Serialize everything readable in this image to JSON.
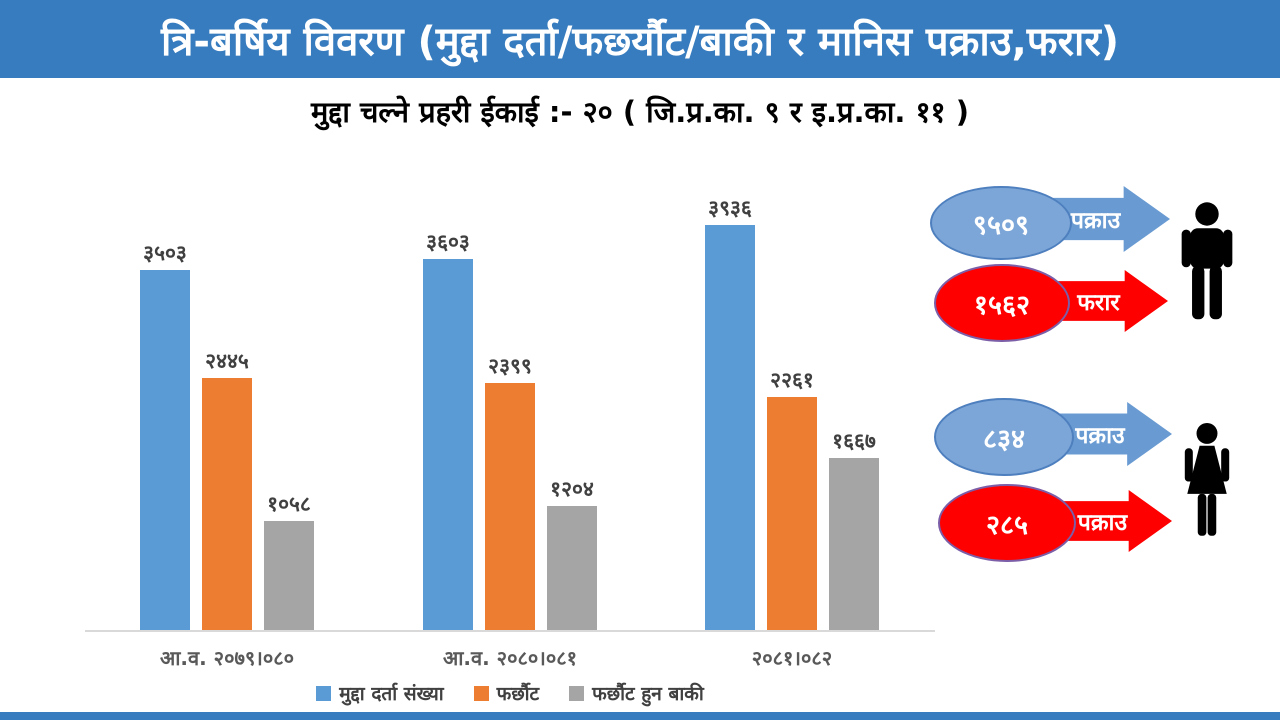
{
  "header": {
    "title": "त्रि-बर्षिय विवरण (मुद्दा दर्ता/फछर्यौट/बाकी र मानिस पक्राउ,फरार)"
  },
  "subtitle": {
    "text": "मुद्दा चल्ने प्रहरी ईकाई :- २० ( जि.प्र.का. ९ र इ.प्र.का. ११ )"
  },
  "chart_data": {
    "type": "bar",
    "categories": [
      "आ.व. २०७९।०८०",
      "आ.व. २०८०।०८१",
      "२०८१।०८२"
    ],
    "series": [
      {
        "name": "मुद्दा दर्ता संख्या",
        "color": "#5B9BD5",
        "values": [
          3503,
          3603,
          3936
        ],
        "display_labels": [
          "३५०३",
          "३६०३",
          "३९३६"
        ]
      },
      {
        "name": "फर्छौट",
        "color": "#ED7D31",
        "values": [
          2445,
          2399,
          2261
        ],
        "display_labels": [
          "२४४५",
          "२३९९",
          "२२६१"
        ]
      },
      {
        "name": "फर्छौट हुन बाकी",
        "color": "#A5A5A5",
        "values": [
          1058,
          1204,
          1667
        ],
        "display_labels": [
          "१०५८",
          "१२०४",
          "१६६७"
        ]
      }
    ],
    "ylim": [
      0,
      4000
    ],
    "grid": false,
    "legend_position": "bottom",
    "value_labels": true
  },
  "callouts": [
    {
      "group": "male",
      "value": 9509,
      "value_display": "९५०९",
      "arrow_label": "पक्राउ",
      "style": "blue"
    },
    {
      "group": "male",
      "value": 1562,
      "value_display": "१५६२",
      "arrow_label": "फरार",
      "style": "red"
    },
    {
      "group": "female",
      "value": 834,
      "value_display": "८३४",
      "arrow_label": "पक्राउ",
      "style": "blue"
    },
    {
      "group": "female",
      "value": 285,
      "value_display": "२८५",
      "arrow_label": "पक्राउ",
      "style": "red"
    }
  ],
  "icons": [
    "male-person-icon",
    "female-person-icon"
  ],
  "colors": {
    "header_bg": "#377CBE",
    "bar_blue": "#5B9BD5",
    "bar_orange": "#ED7D31",
    "bar_gray": "#A5A5A5",
    "callout_blue_fill": "#7CA6D8",
    "callout_blue_border": "#4E7FBE",
    "arrow_blue": "#699BD2",
    "callout_red": "#FE0000",
    "value_label_color": "#404040",
    "axis_label_color": "#595959"
  }
}
